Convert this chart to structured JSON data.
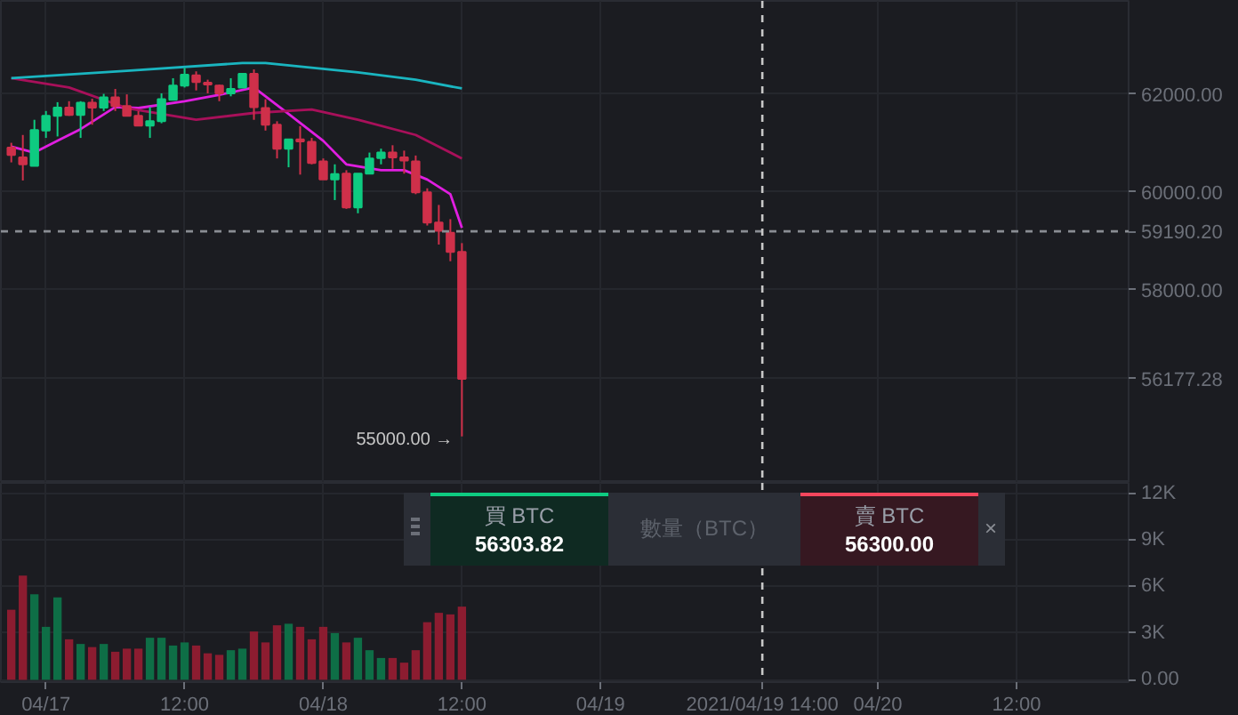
{
  "chart_data": [
    {
      "type": "candlestick",
      "xlim": [
        "2021-04-16T20:06",
        "2021-04-20T21:42"
      ],
      "ylim": [
        54050,
        63900
      ],
      "x": [
        "2021-04-16T21:00",
        "2021-04-16T22:00",
        "2021-04-16T23:00",
        "2021-04-17T00:00",
        "2021-04-17T01:00",
        "2021-04-17T02:00",
        "2021-04-17T03:00",
        "2021-04-17T04:00",
        "2021-04-17T05:00",
        "2021-04-17T06:00",
        "2021-04-17T07:00",
        "2021-04-17T08:00",
        "2021-04-17T09:00",
        "2021-04-17T10:00",
        "2021-04-17T11:00",
        "2021-04-17T12:00",
        "2021-04-17T13:00",
        "2021-04-17T14:00",
        "2021-04-17T15:00",
        "2021-04-17T16:00",
        "2021-04-17T17:00",
        "2021-04-17T18:00",
        "2021-04-17T19:00",
        "2021-04-17T20:00",
        "2021-04-17T21:00",
        "2021-04-17T22:00",
        "2021-04-17T23:00",
        "2021-04-18T00:00",
        "2021-04-18T01:00",
        "2021-04-18T02:00",
        "2021-04-18T03:00",
        "2021-04-18T04:00",
        "2021-04-18T05:00",
        "2021-04-18T06:00",
        "2021-04-18T07:00",
        "2021-04-18T08:00",
        "2021-04-18T09:00",
        "2021-04-18T10:00",
        "2021-04-18T11:00",
        "2021-04-18T12:00"
      ],
      "ohlc": [
        [
          60900,
          61000,
          60600,
          60750
        ],
        [
          60700,
          61160,
          60230,
          60560
        ],
        [
          60530,
          61470,
          60520,
          61260
        ],
        [
          61250,
          61650,
          61100,
          61550
        ],
        [
          61550,
          61830,
          61130,
          61720
        ],
        [
          61720,
          61850,
          61550,
          61570
        ],
        [
          61570,
          61850,
          61100,
          61820
        ],
        [
          61820,
          61900,
          61370,
          61720
        ],
        [
          61720,
          62000,
          61650,
          61930
        ],
        [
          61930,
          62100,
          61650,
          61750
        ],
        [
          61750,
          61990,
          61550,
          61550
        ],
        [
          61550,
          61650,
          61350,
          61350
        ],
        [
          61350,
          61730,
          61100,
          61440
        ],
        [
          61440,
          62010,
          61400,
          61890
        ],
        [
          61880,
          62320,
          61880,
          62170
        ],
        [
          62170,
          62530,
          62130,
          62390
        ],
        [
          62380,
          62460,
          62070,
          62240
        ],
        [
          62230,
          62290,
          62010,
          62190
        ],
        [
          62170,
          62190,
          61850,
          62010
        ],
        [
          62010,
          62320,
          61950,
          62100
        ],
        [
          62130,
          62410,
          62130,
          62410
        ],
        [
          62410,
          62500,
          61470,
          61730
        ],
        [
          61710,
          61890,
          61250,
          61370
        ],
        [
          61370,
          61440,
          60680,
          60880
        ],
        [
          60880,
          61070,
          60500,
          61070
        ],
        [
          61070,
          61340,
          60350,
          61030
        ],
        [
          61020,
          61100,
          60560,
          60590
        ],
        [
          60620,
          60680,
          60250,
          60250
        ],
        [
          60250,
          60560,
          59830,
          60360
        ],
        [
          60370,
          60440,
          59650,
          59680
        ],
        [
          59680,
          60370,
          59560,
          60370
        ],
        [
          60370,
          60800,
          60370,
          60680
        ],
        [
          60690,
          60880,
          60560,
          60800
        ],
        [
          60800,
          60950,
          60470,
          60700
        ],
        [
          60700,
          60840,
          60370,
          60640
        ],
        [
          60620,
          60740,
          59950,
          59990
        ],
        [
          59990,
          60070,
          59310,
          59370
        ],
        [
          59370,
          59730,
          58920,
          59200
        ],
        [
          59160,
          59440,
          58580,
          58770
        ],
        [
          58770,
          58950,
          55000,
          56177.28
        ]
      ],
      "colors": [
        "#cf304a",
        "#cf304a",
        "#0ecb81",
        "#0ecb81",
        "#0ecb81",
        "#cf304a",
        "#0ecb81",
        "#cf304a",
        "#0ecb81",
        "#cf304a",
        "#cf304a",
        "#cf304a",
        "#0ecb81",
        "#0ecb81",
        "#0ecb81",
        "#0ecb81",
        "#cf304a",
        "#cf304a",
        "#cf304a",
        "#0ecb81",
        "#0ecb81",
        "#cf304a",
        "#cf304a",
        "#cf304a",
        "#0ecb81",
        "#cf304a",
        "#cf304a",
        "#cf304a",
        "#0ecb81",
        "#cf304a",
        "#0ecb81",
        "#0ecb81",
        "#0ecb81",
        "#cf304a",
        "#cf304a",
        "#cf304a",
        "#cf304a",
        "#cf304a",
        "#cf304a",
        "#cf304a"
      ],
      "series": [
        {
          "type": "line",
          "color": "#e01ee0",
          "x": [
            "2021-04-16T21:00",
            "2021-04-16T23:00",
            "2021-04-17T01:00",
            "2021-04-17T03:00",
            "2021-04-17T06:00",
            "2021-04-17T08:00",
            "2021-04-17T12:00",
            "2021-04-17T15:00",
            "2021-04-17T18:00",
            "2021-04-17T21:00",
            "2021-04-18T00:00",
            "2021-04-18T02:00",
            "2021-04-18T05:00",
            "2021-04-18T07:00",
            "2021-04-18T09:00",
            "2021-04-18T11:00",
            "2021-04-18T12:00"
          ],
          "values": [
            60920,
            60800,
            61040,
            61280,
            61730,
            61710,
            61850,
            61980,
            62130,
            61590,
            61040,
            60560,
            60440,
            60440,
            60250,
            59950,
            59260
          ]
        },
        {
          "type": "line",
          "color": "#a8105a",
          "x": [
            "2021-04-16T21:00",
            "2021-04-17T02:00",
            "2021-04-17T07:00",
            "2021-04-17T13:00",
            "2021-04-17T18:00",
            "2021-04-17T23:00",
            "2021-04-18T03:00",
            "2021-04-18T08:00",
            "2021-04-18T12:00"
          ],
          "values": [
            62320,
            62130,
            61710,
            61470,
            61610,
            61680,
            61470,
            61160,
            60680
          ]
        },
        {
          "type": "line",
          "color": "#1ab5c0",
          "x": [
            "2021-04-16T21:00",
            "2021-04-17T07:00",
            "2021-04-17T17:00",
            "2021-04-17T19:00",
            "2021-04-18T03:00",
            "2021-04-18T08:00",
            "2021-04-18T12:00"
          ],
          "values": [
            62320,
            62470,
            62630,
            62630,
            62440,
            62290,
            62110
          ]
        }
      ],
      "yticks": [
        {
          "value": 56177.28,
          "label": "56177.28"
        },
        {
          "value": 58000,
          "label": "58000.00"
        },
        {
          "value": 60000,
          "label": "60000.00"
        },
        {
          "value": 62000,
          "label": "62000.00"
        }
      ],
      "xticks": [
        {
          "value": "2021-04-17",
          "label": null
        },
        {
          "value": "2021-04-17T12:00",
          "label": null
        },
        {
          "value": "2021-04-18",
          "label": null
        },
        {
          "value": "2021-04-18T12:00",
          "label": null
        },
        {
          "value": "2021-04-19",
          "label": null
        },
        {
          "value": "2021-04-20",
          "label": null
        },
        {
          "value": "2021-04-20T12:00",
          "label": null
        }
      ],
      "tick_labels": "y",
      "grid": true,
      "ref_lines": [
        {
          "axis": "y",
          "value": 59190.2,
          "label": "59190.20",
          "line_style": "dashed",
          "color": "#8a8d94"
        },
        {
          "axis": "x",
          "value": "2021-04-19T14:00",
          "line_style": "dashed",
          "color": "#c8c8c8"
        }
      ],
      "annotations": [
        {
          "text": "55000.00 →",
          "x": "2021-04-18T12:00",
          "y": 55000
        }
      ]
    },
    {
      "type": "bar",
      "xlim": [
        "2021-04-16T20:06",
        "2021-04-20T21:42"
      ],
      "ylim": [
        -150,
        12650
      ],
      "x": [
        "2021-04-16T21:00",
        "2021-04-16T22:00",
        "2021-04-16T23:00",
        "2021-04-17T00:00",
        "2021-04-17T01:00",
        "2021-04-17T02:00",
        "2021-04-17T03:00",
        "2021-04-17T04:00",
        "2021-04-17T05:00",
        "2021-04-17T06:00",
        "2021-04-17T07:00",
        "2021-04-17T08:00",
        "2021-04-17T09:00",
        "2021-04-17T10:00",
        "2021-04-17T11:00",
        "2021-04-17T12:00",
        "2021-04-17T13:00",
        "2021-04-17T14:00",
        "2021-04-17T15:00",
        "2021-04-17T16:00",
        "2021-04-17T17:00",
        "2021-04-17T18:00",
        "2021-04-17T19:00",
        "2021-04-17T20:00",
        "2021-04-17T21:00",
        "2021-04-17T22:00",
        "2021-04-17T23:00",
        "2021-04-18T00:00",
        "2021-04-18T01:00",
        "2021-04-18T02:00",
        "2021-04-18T03:00",
        "2021-04-18T04:00",
        "2021-04-18T05:00",
        "2021-04-18T06:00",
        "2021-04-18T07:00",
        "2021-04-18T08:00",
        "2021-04-18T09:00",
        "2021-04-18T10:00",
        "2021-04-18T11:00",
        "2021-04-18T12:00"
      ],
      "values": [
        4500,
        6700,
        5500,
        3400,
        5300,
        2600,
        2300,
        2100,
        2300,
        1800,
        2000,
        2000,
        2700,
        2700,
        2200,
        2400,
        2200,
        1700,
        1600,
        1900,
        2000,
        3100,
        2400,
        3500,
        3600,
        3400,
        2600,
        3400,
        3000,
        2400,
        2700,
        1900,
        1400,
        1400,
        1100,
        1900,
        3700,
        4300,
        4200,
        4700
      ],
      "colors": [
        "#8c1c30",
        "#8c1c30",
        "#0e6e46",
        "#0e6e46",
        "#0e6e46",
        "#8c1c30",
        "#0e6e46",
        "#8c1c30",
        "#0e6e46",
        "#8c1c30",
        "#8c1c30",
        "#8c1c30",
        "#0e6e46",
        "#0e6e46",
        "#0e6e46",
        "#0e6e46",
        "#8c1c30",
        "#8c1c30",
        "#8c1c30",
        "#0e6e46",
        "#0e6e46",
        "#8c1c30",
        "#8c1c30",
        "#8c1c30",
        "#0e6e46",
        "#8c1c30",
        "#8c1c30",
        "#8c1c30",
        "#0e6e46",
        "#8c1c30",
        "#0e6e46",
        "#0e6e46",
        "#0e6e46",
        "#8c1c30",
        "#8c1c30",
        "#8c1c30",
        "#8c1c30",
        "#8c1c30",
        "#8c1c30",
        "#8c1c30"
      ],
      "yticks": [
        {
          "value": 0,
          "label": "0.00"
        },
        {
          "value": 3000,
          "label": "3K"
        },
        {
          "value": 6000,
          "label": "6K"
        },
        {
          "value": 9000,
          "label": "9K"
        },
        {
          "value": 12000,
          "label": "12K"
        }
      ],
      "xticks": [
        {
          "value": "2021-04-17",
          "label": "04/17"
        },
        {
          "value": "2021-04-17T12:00",
          "label": "12:00"
        },
        {
          "value": "2021-04-18",
          "label": "04/18"
        },
        {
          "value": "2021-04-18T12:00",
          "label": "12:00"
        },
        {
          "value": "2021-04-19",
          "label": "04/19"
        },
        {
          "value": "2021-04-20",
          "label": "04/20"
        },
        {
          "value": "2021-04-20T12:00",
          "label": "12:00"
        }
      ],
      "grid": true,
      "ref_lines": [
        {
          "axis": "x",
          "value": "2021-04-19T14:00",
          "label": "2021/04/19 14:00",
          "line_style": "dashed",
          "color": "#c8c8c8"
        }
      ],
      "annotations": [
        "買 BTC",
        "56303.82",
        "數量（BTC）",
        "賣 BTC",
        "56300.00",
        "×"
      ]
    }
  ]
}
